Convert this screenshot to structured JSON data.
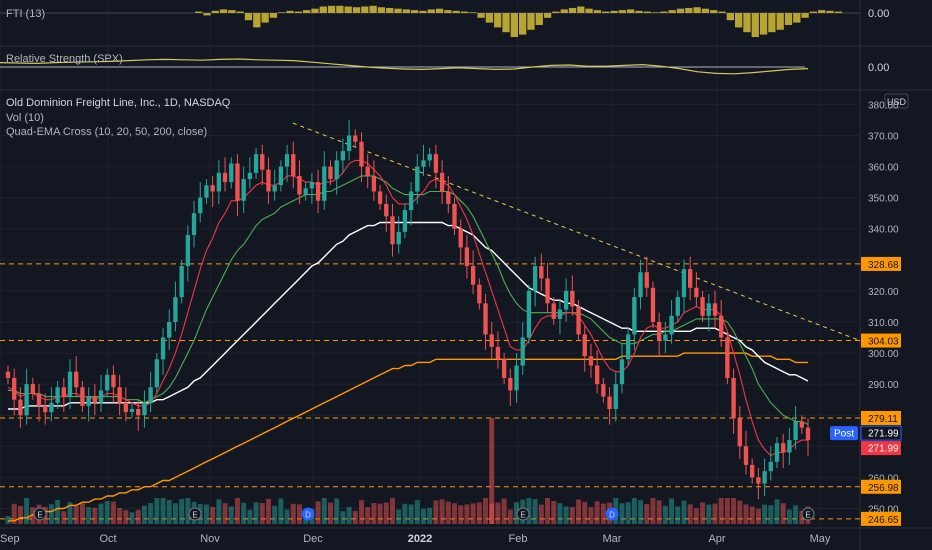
{
  "panes": {
    "fti": {
      "label": "FTI (13)",
      "value_label": "0.00",
      "bars": [
        0.2,
        -0.1,
        0.3,
        0.5,
        0.4,
        0.2,
        -0.3,
        -0.6,
        -0.4,
        -0.2,
        0.1,
        0.3,
        0.2,
        0.4,
        0.6,
        0.9,
        1.0,
        1.0,
        0.9,
        0.8,
        0.9,
        1.0,
        0.8,
        0.7,
        0.6,
        0.5,
        0.4,
        0.3,
        0.5,
        0.6,
        0.4,
        0.3,
        0.2,
        0.1,
        -0.2,
        -0.4,
        -0.6,
        -0.8,
        -1.0,
        -0.9,
        -0.7,
        -0.5,
        -0.2,
        0.2,
        0.5,
        0.7,
        0.9,
        0.6,
        0.4,
        0.2,
        0.3,
        0.4,
        0.5,
        0.3,
        0.2,
        0.1,
        0.2,
        0.4,
        0.6,
        0.7,
        0.8,
        0.6,
        0.4,
        0.2,
        -0.3,
        -0.6,
        -0.8,
        -1.0,
        -0.9,
        -0.8,
        -0.7,
        -0.5,
        -0.4,
        -0.2,
        0.2,
        0.4,
        0.3,
        0.2
      ],
      "color": "#B7A432"
    },
    "rs": {
      "label": "Relative Strength (SPX)",
      "value_label": "0.00",
      "line_color": "#D4C85A",
      "values": [
        0.55,
        0.5,
        0.45,
        0.55,
        0.6,
        0.65,
        0.7,
        0.8,
        0.9,
        0.95,
        0.9,
        0.85,
        0.95,
        1.0,
        0.9,
        0.85,
        0.8,
        0.6,
        0.4,
        0.2,
        0.0,
        -0.15,
        -0.25,
        -0.3,
        -0.2,
        -0.1,
        -0.2,
        -0.3,
        -0.25,
        0.0,
        0.2,
        0.25,
        0.1,
        0.1,
        0.2,
        0.3,
        0.1,
        -0.2,
        -0.6,
        -0.8,
        -0.85,
        -0.7,
        -0.5,
        -0.3,
        -0.2
      ]
    },
    "main": {
      "title": "Old Dominion Freight Line, Inc., 1D, NASDAQ",
      "subtitle_1": "Vol (10)",
      "subtitle_2": "Quad-EMA Cross (10, 20, 50, 200, close)",
      "currency_badge": "USD"
    }
  },
  "x_axis_labels": [
    "Sep",
    "Oct",
    "Nov",
    "Dec",
    "2022",
    "Feb",
    "Mar",
    "Apr",
    "May"
  ],
  "price_levels": [
    {
      "value": 328.68,
      "label": "328.68",
      "color": "#FF9800"
    },
    {
      "value": 304.03,
      "label": "304.03",
      "color": "#FF9800"
    },
    {
      "value": 279.11,
      "label": "279.11",
      "color": "#FF9800"
    },
    {
      "value": 256.98,
      "label": "256.98",
      "color": "#FF9800"
    },
    {
      "value": 246.65,
      "label": "246.65",
      "color": "#FF9800"
    }
  ],
  "badges": {
    "post_label": "Post",
    "post_value": 271.99,
    "post_text": "271.99",
    "last_value": 271.99,
    "last_text": "271.99",
    "post_color": "#2962FF",
    "last_color": "#F23645"
  },
  "event_markers": [
    {
      "x": "Sep",
      "letter": "E"
    },
    {
      "x": "Nov",
      "letter": "E"
    },
    {
      "x": "Dec",
      "letter": "D"
    },
    {
      "x": "Feb",
      "letter": "E"
    },
    {
      "x": "Mar",
      "letter": "D"
    },
    {
      "x": "Apr",
      "letter": "E"
    }
  ],
  "chart_data": {
    "type": "candlestick",
    "y_axis_ticks": [
      380,
      370,
      360,
      350,
      340,
      330,
      320,
      310,
      300,
      290,
      280,
      270,
      260,
      250
    ],
    "y_axis_tick_labels": [
      "380.00",
      "370.00",
      "360.00",
      "350.00",
      "340.00",
      "",
      "320.00",
      "310.00",
      "300.00",
      "290.00",
      "",
      "270.00",
      "260.00",
      "250.00"
    ],
    "ylim": [
      245,
      384
    ],
    "colors": {
      "up": "#26A69A",
      "down": "#EF5350",
      "ema10": "#F23645",
      "ema20": "#4CAF50",
      "ema50": "#FFFFFF",
      "ema200": "#FF9800",
      "trendline": "#F2C94C"
    },
    "close": [
      292,
      285,
      280,
      290,
      287,
      283,
      281,
      284,
      289,
      286,
      294,
      289,
      283,
      286,
      284,
      288,
      293,
      289,
      284,
      281,
      282,
      280,
      284,
      289,
      298,
      305,
      310,
      318,
      328,
      338,
      345,
      350,
      354,
      352,
      358,
      355,
      361,
      349,
      356,
      358,
      364,
      359,
      352,
      354,
      360,
      364,
      357,
      351,
      353,
      355,
      349,
      360,
      356,
      362,
      365,
      370,
      368,
      360,
      357,
      352,
      348,
      344,
      335,
      339,
      346,
      352,
      360,
      362,
      364,
      358,
      352,
      348,
      340,
      334,
      328,
      322,
      316,
      306,
      302,
      298,
      292,
      288,
      296,
      305,
      320,
      328,
      324,
      316,
      311,
      314,
      320,
      315,
      306,
      299,
      296,
      290,
      286,
      282,
      290,
      298,
      306,
      318,
      326,
      321,
      310,
      304,
      306,
      312,
      318,
      327,
      321,
      318,
      312,
      316,
      312,
      305,
      292,
      279,
      270,
      264,
      260,
      258,
      262,
      265,
      271,
      268,
      272,
      278,
      276,
      272
    ],
    "ema10": [
      289,
      288,
      286,
      287,
      287,
      286,
      285,
      285,
      286,
      286,
      287,
      287,
      286,
      286,
      285,
      286,
      287,
      287,
      286,
      285,
      284,
      283,
      283,
      284,
      287,
      291,
      295,
      300,
      306,
      313,
      320,
      327,
      333,
      337,
      342,
      345,
      349,
      349,
      350,
      352,
      354,
      355,
      354,
      354,
      355,
      357,
      357,
      356,
      355,
      355,
      354,
      355,
      355,
      356,
      358,
      361,
      362,
      362,
      361,
      359,
      357,
      354,
      350,
      348,
      348,
      348,
      350,
      352,
      355,
      356,
      355,
      354,
      351,
      347,
      343,
      338,
      332,
      326,
      320,
      314,
      308,
      302,
      301,
      301,
      304,
      308,
      311,
      312,
      312,
      312,
      313,
      313,
      312,
      309,
      306,
      302,
      298,
      295,
      294,
      294,
      296,
      300,
      305,
      308,
      309,
      308,
      308,
      309,
      310,
      313,
      314,
      315,
      314,
      314,
      314,
      312,
      307,
      300,
      293,
      285,
      278,
      272,
      269,
      267,
      268,
      268,
      269,
      271,
      272,
      272
    ],
    "ema20": [
      288,
      288,
      287,
      287,
      287,
      287,
      286,
      286,
      286,
      286,
      286,
      286,
      286,
      286,
      286,
      286,
      286,
      286,
      286,
      285,
      285,
      285,
      284,
      285,
      286,
      287,
      289,
      292,
      296,
      300,
      304,
      309,
      314,
      318,
      322,
      326,
      330,
      333,
      335,
      338,
      341,
      343,
      344,
      345,
      347,
      348,
      349,
      350,
      351,
      351,
      351,
      352,
      352,
      353,
      354,
      355,
      356,
      357,
      357,
      357,
      356,
      355,
      353,
      352,
      351,
      351,
      351,
      351,
      352,
      352,
      352,
      352,
      351,
      349,
      347,
      344,
      340,
      336,
      332,
      328,
      323,
      319,
      316,
      314,
      313,
      313,
      313,
      313,
      313,
      313,
      313,
      313,
      313,
      312,
      311,
      309,
      307,
      305,
      304,
      303,
      303,
      303,
      304,
      305,
      306,
      306,
      307,
      307,
      308,
      309,
      310,
      311,
      311,
      311,
      311,
      311,
      310,
      307,
      303,
      299,
      295,
      290,
      287,
      284,
      282,
      280,
      279,
      278,
      278,
      277
    ],
    "ema50": [
      282,
      282,
      282,
      283,
      283,
      283,
      283,
      283,
      283,
      283,
      284,
      284,
      284,
      284,
      284,
      284,
      284,
      284,
      284,
      284,
      284,
      284,
      284,
      284,
      285,
      285,
      286,
      287,
      288,
      289,
      291,
      292,
      294,
      296,
      298,
      300,
      302,
      304,
      306,
      308,
      310,
      312,
      314,
      316,
      318,
      320,
      322,
      324,
      326,
      328,
      329,
      331,
      333,
      335,
      336,
      338,
      339,
      340,
      341,
      341,
      342,
      342,
      342,
      342,
      342,
      342,
      342,
      342,
      342,
      342,
      342,
      341,
      341,
      340,
      339,
      338,
      336,
      334,
      333,
      331,
      329,
      327,
      325,
      323,
      321,
      320,
      319,
      318,
      317,
      317,
      316,
      316,
      315,
      314,
      313,
      312,
      311,
      310,
      309,
      308,
      308,
      307,
      307,
      307,
      307,
      307,
      307,
      307,
      307,
      307,
      307,
      308,
      308,
      308,
      308,
      307,
      306,
      305,
      304,
      302,
      301,
      299,
      297,
      296,
      295,
      294,
      293,
      293,
      292,
      291
    ],
    "ema200": [
      246,
      246,
      247,
      247,
      248,
      248,
      249,
      249,
      250,
      250,
      251,
      251,
      252,
      252,
      253,
      253,
      254,
      254,
      255,
      255,
      256,
      256,
      257,
      257,
      258,
      259,
      259,
      260,
      261,
      262,
      263,
      264,
      265,
      266,
      267,
      268,
      269,
      270,
      271,
      272,
      273,
      274,
      275,
      276,
      277,
      278,
      279,
      280,
      281,
      282,
      283,
      284,
      285,
      286,
      287,
      288,
      289,
      290,
      291,
      292,
      293,
      294,
      295,
      295,
      296,
      296,
      297,
      297,
      297,
      298,
      298,
      298,
      298,
      298,
      298,
      298,
      298,
      298,
      298,
      298,
      298,
      298,
      298,
      298,
      298,
      298,
      298,
      298,
      298,
      298,
      298,
      298,
      298,
      298,
      298,
      298,
      298,
      298,
      298,
      299,
      299,
      299,
      299,
      299,
      299,
      299,
      299,
      299,
      299,
      300,
      300,
      300,
      300,
      300,
      300,
      300,
      300,
      300,
      300,
      300,
      299,
      299,
      299,
      299,
      298,
      298,
      298,
      297,
      297,
      297
    ],
    "trendline": {
      "start_price": 374,
      "end_price": 304,
      "start_index": 53,
      "end_index": 147
    }
  }
}
